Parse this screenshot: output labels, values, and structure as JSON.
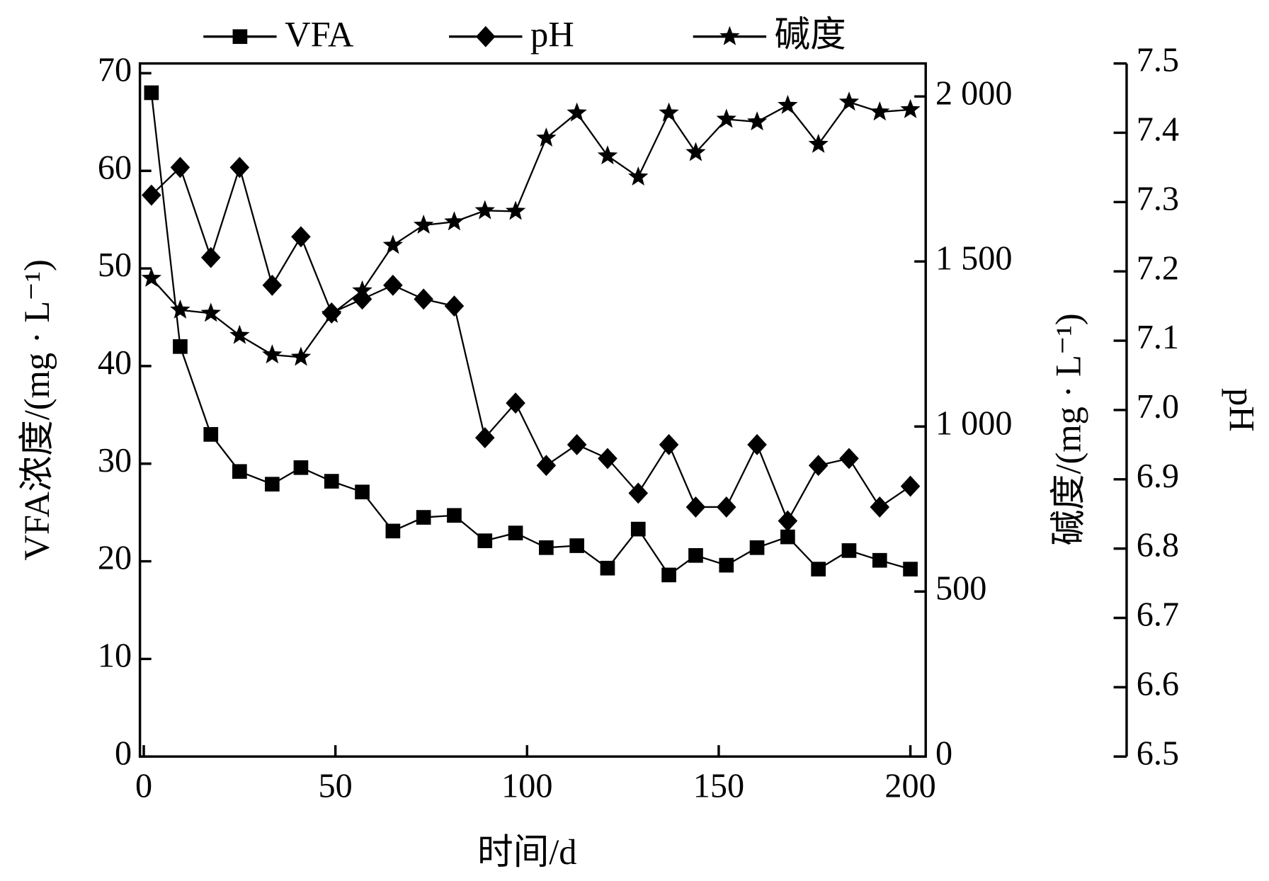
{
  "chart_data": {
    "type": "line",
    "xlabel": "时间/d",
    "ylabel": "VFA浓度/(mg · L⁻¹)",
    "y2label": "碱度/(mg · L⁻¹)",
    "y3label": "pH",
    "x": [
      2,
      9.5,
      17.5,
      25,
      33.5,
      41,
      49,
      57,
      65,
      73,
      81,
      89,
      97,
      105,
      113,
      121,
      129,
      137,
      144,
      152,
      160,
      168,
      176,
      184,
      192,
      200
    ],
    "xlim": [
      -1,
      204
    ],
    "xticks": [
      0,
      50,
      100,
      150,
      200
    ],
    "ylim": [
      0,
      71
    ],
    "yticks": [
      0,
      10,
      20,
      30,
      40,
      50,
      60,
      70
    ],
    "y2lim": [
      0,
      2100
    ],
    "y2ticks": [
      0,
      500,
      {
        "value": 1000,
        "label": "1 000"
      },
      {
        "value": 1500,
        "label": "1 500"
      },
      {
        "value": 2000,
        "label": "2 000"
      }
    ],
    "y3lim": [
      6.5,
      7.5
    ],
    "y3ticks": [
      6.5,
      6.6,
      6.7,
      6.8,
      6.9,
      {
        "value": 7,
        "label": "7.0"
      },
      7.1,
      7.2,
      7.3,
      7.4,
      7.5
    ],
    "series": [
      {
        "name": "VFA",
        "color": "#000000",
        "marker": "square",
        "axis": "y",
        "values": [
          68,
          42,
          33,
          29.2,
          27.9,
          29.6,
          28.2,
          27.1,
          23.1,
          24.5,
          24.7,
          22.1,
          22.9,
          21.4,
          21.6,
          19.3,
          23.3,
          18.6,
          20.6,
          19.6,
          21.4,
          22.5,
          19.2,
          21.1,
          20.1,
          19.2
        ]
      },
      {
        "name": "pH",
        "color": "#000000",
        "marker": "diamond",
        "axis": "y3",
        "values": [
          7.31,
          7.35,
          7.22,
          7.35,
          7.18,
          7.25,
          7.14,
          7.16,
          7.18,
          7.16,
          7.15,
          6.96,
          7.01,
          6.92,
          6.95,
          6.93,
          6.88,
          6.95,
          6.86,
          6.86,
          6.95,
          6.84,
          6.92,
          6.93,
          6.86,
          6.89
        ]
      },
      {
        "name": "碱度",
        "color": "#000000",
        "marker": "star",
        "axis": "y2",
        "values": [
          1449,
          1353,
          1343,
          1276,
          1217,
          1210,
          1340,
          1411,
          1549,
          1610,
          1620,
          1654,
          1652,
          1874,
          1950,
          1820,
          1756,
          1950,
          1830,
          1931,
          1923,
          1973,
          1855,
          1983,
          1953,
          1960
        ]
      }
    ]
  }
}
